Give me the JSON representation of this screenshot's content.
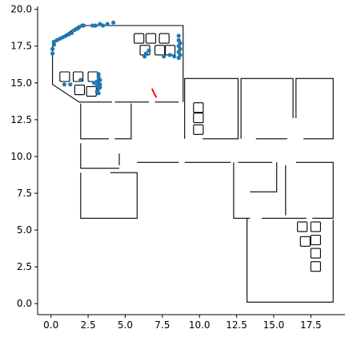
{
  "chart_data": {
    "type": "scatter",
    "title": "",
    "xlabel": "",
    "ylabel": "",
    "xlim": [
      -0.9,
      19.8
    ],
    "ylim": [
      -0.75,
      20.2
    ],
    "x_ticks": [
      0.0,
      2.5,
      5.0,
      7.5,
      10.0,
      12.5,
      15.0,
      17.5
    ],
    "y_ticks": [
      0.0,
      2.5,
      5.0,
      7.5,
      10.0,
      12.5,
      15.0,
      17.5,
      20.0
    ],
    "x_tick_labels": [
      "0.0",
      "2.5",
      "5.0",
      "7.5",
      "10.0",
      "12.5",
      "15.0",
      "17.5"
    ],
    "y_tick_labels": [
      "0.0",
      "2.5",
      "5.0",
      "7.5",
      "10.0",
      "12.5",
      "15.0",
      "17.5",
      "20.0"
    ],
    "grid": false,
    "spines": [
      "left",
      "bottom"
    ],
    "walls": [
      [
        [
          0.1,
          14.9
        ],
        [
          0.1,
          17.7
        ],
        [
          1.9,
          18.9
        ],
        [
          8.9,
          18.9
        ],
        [
          8.9,
          13.7
        ]
      ],
      [
        [
          0.1,
          14.9
        ],
        [
          1.9,
          13.7
        ],
        [
          4.1,
          13.7
        ]
      ],
      [
        [
          4.3,
          13.7
        ],
        [
          6.6,
          13.7
        ]
      ],
      [
        [
          7.0,
          13.7
        ],
        [
          8.6,
          13.7
        ]
      ],
      [
        [
          2.0,
          13.6
        ],
        [
          2.0,
          11.2
        ],
        [
          3.9,
          11.2
        ]
      ],
      [
        [
          5.4,
          13.6
        ],
        [
          5.4,
          11.2
        ],
        [
          4.3,
          11.2
        ]
      ],
      [
        [
          2.0,
          10.9
        ],
        [
          2.0,
          9.2
        ],
        [
          4.6,
          9.2
        ]
      ],
      [
        [
          2.0,
          8.9
        ],
        [
          2.0,
          5.8
        ],
        [
          5.8,
          5.8
        ],
        [
          5.8,
          8.9
        ],
        [
          4.0,
          8.9
        ]
      ],
      [
        [
          4.6,
          10.2
        ],
        [
          4.6,
          9.4
        ]
      ],
      [
        [
          5.8,
          9.6
        ],
        [
          8.6,
          9.6
        ]
      ],
      [
        [
          9.0,
          9.6
        ],
        [
          12.1,
          9.6
        ]
      ],
      [
        [
          9.0,
          11.2
        ],
        [
          9.0,
          15.3
        ],
        [
          12.6,
          15.3
        ],
        [
          12.6,
          11.2
        ],
        [
          10.2,
          11.2
        ]
      ],
      [
        [
          12.8,
          11.2
        ],
        [
          12.8,
          15.3
        ],
        [
          16.3,
          15.3
        ],
        [
          16.3,
          12.6
        ]
      ],
      [
        [
          16.5,
          12.6
        ],
        [
          16.5,
          15.3
        ],
        [
          19.0,
          15.3
        ],
        [
          19.0,
          11.2
        ],
        [
          17.0,
          11.2
        ]
      ],
      [
        [
          13.8,
          11.2
        ],
        [
          15.9,
          11.2
        ]
      ],
      [
        [
          12.3,
          9.6
        ],
        [
          12.3,
          5.8
        ],
        [
          13.4,
          5.8
        ]
      ],
      [
        [
          14.2,
          5.8
        ],
        [
          17.2,
          5.8
        ]
      ],
      [
        [
          17.6,
          5.8
        ],
        [
          19.0,
          5.8
        ],
        [
          19.0,
          9.6
        ],
        [
          16.5,
          9.6
        ]
      ],
      [
        [
          12.6,
          9.6
        ],
        [
          14.9,
          9.6
        ]
      ],
      [
        [
          15.2,
          9.6
        ],
        [
          15.2,
          7.6
        ],
        [
          13.4,
          7.6
        ]
      ],
      [
        [
          15.8,
          9.4
        ],
        [
          15.8,
          6.0
        ]
      ],
      [
        [
          13.2,
          5.8
        ],
        [
          13.2,
          0.1
        ],
        [
          19.0,
          0.1
        ],
        [
          19.0,
          5.7
        ]
      ]
    ],
    "obstacles": [
      [
        5.6,
        17.7
      ],
      [
        6.4,
        17.7
      ],
      [
        7.3,
        17.7
      ],
      [
        6.0,
        16.9
      ],
      [
        7.0,
        16.9
      ],
      [
        7.7,
        16.9
      ],
      [
        0.6,
        15.1
      ],
      [
        1.5,
        15.1
      ],
      [
        2.5,
        15.1
      ],
      [
        1.6,
        14.2
      ],
      [
        2.4,
        14.1
      ],
      [
        9.6,
        13.0
      ],
      [
        9.6,
        12.3
      ],
      [
        9.6,
        11.5
      ],
      [
        16.6,
        4.9
      ],
      [
        17.5,
        4.9
      ],
      [
        16.8,
        3.9
      ],
      [
        17.5,
        4.0
      ],
      [
        17.5,
        3.1
      ],
      [
        17.5,
        2.2
      ]
    ],
    "obstacle_size": 0.65,
    "points_color": "#1f77b4",
    "points": [
      [
        0.1,
        17.0
      ],
      [
        0.1,
        17.3
      ],
      [
        0.2,
        17.6
      ],
      [
        0.2,
        17.8
      ],
      [
        0.4,
        17.9
      ],
      [
        0.6,
        18.0
      ],
      [
        0.8,
        18.1
      ],
      [
        1.0,
        18.2
      ],
      [
        1.2,
        18.3
      ],
      [
        1.4,
        18.4
      ],
      [
        1.6,
        18.6
      ],
      [
        1.8,
        18.7
      ],
      [
        1.9,
        18.8
      ],
      [
        2.1,
        18.9
      ],
      [
        2.2,
        18.9
      ],
      [
        2.8,
        18.9
      ],
      [
        3.0,
        18.9
      ],
      [
        3.3,
        19.0
      ],
      [
        3.5,
        18.9
      ],
      [
        3.8,
        19.0
      ],
      [
        4.2,
        19.1
      ],
      [
        8.6,
        18.2
      ],
      [
        8.6,
        17.9
      ],
      [
        8.7,
        17.7
      ],
      [
        8.6,
        17.5
      ],
      [
        8.7,
        17.3
      ],
      [
        8.6,
        17.1
      ],
      [
        8.7,
        16.9
      ],
      [
        8.6,
        16.7
      ],
      [
        6.6,
        17.2
      ],
      [
        6.4,
        17.0
      ],
      [
        6.3,
        16.8
      ],
      [
        7.6,
        16.8
      ],
      [
        8.0,
        16.9
      ],
      [
        8.3,
        16.8
      ],
      [
        0.9,
        14.9
      ],
      [
        1.3,
        14.9
      ],
      [
        2.0,
        15.2
      ],
      [
        2.9,
        15.0
      ],
      [
        3.2,
        15.6
      ],
      [
        3.2,
        15.4
      ],
      [
        3.3,
        15.2
      ],
      [
        3.1,
        15.1
      ],
      [
        3.2,
        15.0
      ],
      [
        3.3,
        14.9
      ],
      [
        3.1,
        14.8
      ],
      [
        3.3,
        14.7
      ],
      [
        3.2,
        14.6
      ],
      [
        3.1,
        14.4
      ],
      [
        3.2,
        14.3
      ]
    ],
    "path_color": "#ff0000",
    "path": [
      [
        6.8,
        14.6
      ],
      [
        7.1,
        14.0
      ]
    ]
  }
}
